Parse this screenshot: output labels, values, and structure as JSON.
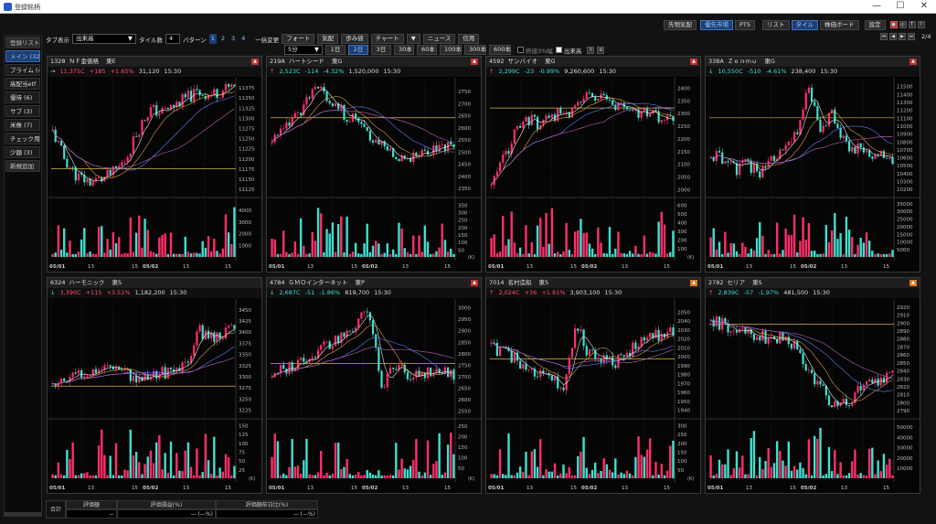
{
  "window": {
    "title": "登録銘柄",
    "controls": [
      "—",
      "☐",
      "✕"
    ]
  },
  "sidebar": {
    "header": "登録リスト",
    "items": [
      {
        "label": "メイン (32)",
        "active": true
      },
      {
        "label": "プライム (4"
      },
      {
        "label": "高配当etf"
      },
      {
        "label": "優待 (6)"
      },
      {
        "label": "サブ (3)"
      },
      {
        "label": "米株 (7)"
      },
      {
        "label": "チェック用 (1"
      },
      {
        "label": "少額 (3)"
      }
    ],
    "add_label": "新規追加"
  },
  "toolbar": {
    "tab_display_label": "タブ表示",
    "tab_display_value": "出来高",
    "tile_count_label": "タイル数",
    "tile_count_value": "4",
    "pattern_label": "パターン",
    "patterns": [
      "1",
      "2",
      "3",
      "4"
    ],
    "bulk_change_label": "一括変更",
    "buttons": [
      "フォート",
      "気配",
      "歩み値",
      "チャート",
      "ニュース",
      "信用"
    ],
    "timeframe": "5分",
    "periods": [
      "1日",
      "2日",
      "3日",
      "30本",
      "60本",
      "100本",
      "300本",
      "600本"
    ],
    "active_period": "2日",
    "checks": [
      {
        "label": "終値3%幅",
        "on": false
      },
      {
        "label": "出来高",
        "on": true
      }
    ]
  },
  "rightbar": {
    "groups1": [
      "先物気配"
    ],
    "groups2": [
      "優先市場",
      "PTS"
    ],
    "groups3": [
      "リスト",
      "タイル",
      "株価ボード"
    ],
    "settings": "設定",
    "page_indicator": "2/4"
  },
  "colors": {
    "up": "#ff4d6d",
    "down": "#3fdcd4",
    "candle_up": "#ff2f6a",
    "candle_down": "#3fe0d0"
  },
  "panels": [
    {
      "code": "1328",
      "name": "ＮＦ金価格",
      "market": "東E",
      "arrow": "→",
      "price": "11,375C",
      "change": "+185",
      "pct": "+1.65%",
      "volume": "31,120",
      "time": "15:30",
      "dir": "up",
      "menu": "red",
      "yticks": [
        "11375",
        "11350",
        "11325",
        "11300",
        "11275",
        "11250",
        "11225",
        "11200",
        "11175",
        "11150",
        "11125"
      ],
      "ymin": 11115,
      "ymax": 11390,
      "vticks": [
        "4000",
        "3000",
        "2000",
        "1000"
      ],
      "vmax": 4800,
      "hline": 11175,
      "xlabels": [
        "05/01",
        "13",
        "15",
        "05/02",
        "13",
        "15"
      ],
      "vol_unit": "",
      "seed": 11,
      "shape": [
        0.55,
        0.3,
        0.15,
        0.1,
        0.12,
        0.18,
        0.3,
        0.55,
        0.75,
        0.72,
        0.78,
        0.85,
        0.9,
        0.88,
        0.92,
        0.95
      ]
    },
    {
      "code": "219A",
      "name": "ハートシード",
      "market": "東G",
      "arrow": "↑",
      "price": "2,523C",
      "change": "-114",
      "pct": "-4.32%",
      "volume": "1,520,000",
      "time": "15:30",
      "dir": "dn",
      "menu": "red",
      "yticks": [
        "2750",
        "2700",
        "2650",
        "2600",
        "2550",
        "2500",
        "2450",
        "2400",
        "2350"
      ],
      "ymin": 2330,
      "ymax": 2790,
      "vticks": [
        "350",
        "300",
        "250",
        "200",
        "150",
        "100",
        "50"
      ],
      "vmax": 380,
      "hline": 2640,
      "xlabels": [
        "05/01",
        "13",
        "15",
        "05/02",
        "13",
        "15"
      ],
      "vol_unit": "(K)",
      "seed": 23,
      "shape": [
        0.5,
        0.55,
        0.7,
        0.85,
        0.95,
        0.8,
        0.7,
        0.65,
        0.5,
        0.45,
        0.35,
        0.32,
        0.35,
        0.38,
        0.42,
        0.4
      ]
    },
    {
      "code": "4592",
      "name": "サンバイオ",
      "market": "東G",
      "arrow": "↑",
      "price": "2,299C",
      "change": "-23",
      "pct": "-0.99%",
      "volume": "9,260,600",
      "time": "15:30",
      "dir": "dn",
      "menu": "red",
      "yticks": [
        "2400",
        "2350",
        "2300",
        "2250",
        "2200",
        "2150",
        "2100",
        "2050",
        "2000"
      ],
      "ymin": 1985,
      "ymax": 2425,
      "vticks": [
        "600",
        "500",
        "400",
        "300",
        "200",
        "100"
      ],
      "vmax": 650,
      "hline": 2320,
      "xlabels": [
        "05/01",
        "13",
        "15",
        "05/02",
        "13",
        "15"
      ],
      "vol_unit": "(K)",
      "seed": 37,
      "shape": [
        0.05,
        0.3,
        0.55,
        0.65,
        0.62,
        0.7,
        0.72,
        0.75,
        0.9,
        0.85,
        0.78,
        0.75,
        0.72,
        0.7,
        0.68,
        0.65
      ]
    },
    {
      "code": "338A",
      "name": "Ｚｅｎｍｕ",
      "market": "東G",
      "arrow": "↓",
      "price": "10,550C",
      "change": "-510",
      "pct": "-4.61%",
      "volume": "238,400",
      "time": "15:30",
      "dir": "dn",
      "menu": "red",
      "yticks": [
        "11500",
        "11400",
        "11300",
        "11200",
        "11100",
        "11000",
        "10900",
        "10800",
        "10700",
        "10600",
        "10500",
        "10400",
        "10300",
        "10200"
      ],
      "ymin": 10150,
      "ymax": 11560,
      "vticks": [
        "35000",
        "30000",
        "25000",
        "20000",
        "15000",
        "10000",
        "5000"
      ],
      "vmax": 37000,
      "hline": 11100,
      "xlabels": [
        "05/01",
        "13",
        "15",
        "05/02",
        "13",
        "15"
      ],
      "vol_unit": "",
      "seed": 51,
      "shape": [
        0.35,
        0.3,
        0.2,
        0.25,
        0.18,
        0.3,
        0.35,
        0.5,
        0.95,
        0.6,
        0.7,
        0.45,
        0.4,
        0.38,
        0.32,
        0.28
      ]
    },
    {
      "code": "6324",
      "name": "ハーモニック",
      "market": "東S",
      "arrow": "↓",
      "price": "3,390C",
      "change": "+115",
      "pct": "+3.51%",
      "volume": "1,182,200",
      "time": "15:30",
      "dir": "up",
      "menu": "none",
      "yticks": [
        "3450",
        "3425",
        "3400",
        "3375",
        "3350",
        "3325",
        "3300",
        "3275",
        "3250",
        "3225"
      ],
      "ymin": 3215,
      "ymax": 3465,
      "vticks": [
        "150",
        "125",
        "100",
        "75",
        "50",
        "25"
      ],
      "vmax": 160,
      "hline": 3278,
      "xlabels": [
        "05/01",
        "13",
        "15",
        "05/02",
        "13",
        "15"
      ],
      "vol_unit": "(K)",
      "seed": 63,
      "shape": [
        0.25,
        0.3,
        0.35,
        0.4,
        0.42,
        0.45,
        0.4,
        0.3,
        0.35,
        0.38,
        0.35,
        0.45,
        0.75,
        0.7,
        0.72,
        0.78
      ]
    },
    {
      "code": "4784",
      "name": "ＧＭＯインターネット",
      "market": "東P",
      "arrow": "↓",
      "price": "2,687C",
      "change": "-51",
      "pct": "-1.86%",
      "volume": "819,700",
      "time": "15:30",
      "dir": "dn",
      "menu": "red",
      "yticks": [
        "3000",
        "2950",
        "2900",
        "2850",
        "2800",
        "2750",
        "2700",
        "2650",
        "2600",
        "2550"
      ],
      "ymin": 2535,
      "ymax": 3020,
      "vticks": [
        "250",
        "200",
        "150",
        "100",
        "50"
      ],
      "vmax": 270,
      "hline": 2755,
      "xlabels": [
        "05/01",
        "13",
        "15",
        "05/02",
        "13",
        "15"
      ],
      "vol_unit": "(K)",
      "seed": 79,
      "shape": [
        0.35,
        0.4,
        0.45,
        0.5,
        0.6,
        0.65,
        0.7,
        0.8,
        0.95,
        0.25,
        0.4,
        0.38,
        0.35,
        0.4,
        0.38,
        0.36
      ]
    },
    {
      "code": "7014",
      "name": "名村造船",
      "market": "東S",
      "arrow": "↑",
      "price": "2,024C",
      "change": "+36",
      "pct": "+1.81%",
      "volume": "3,903,100",
      "time": "15:30",
      "dir": "up",
      "menu": "orange",
      "yticks": [
        "2050",
        "2040",
        "2030",
        "2020",
        "2010",
        "2000",
        "1990",
        "1980",
        "1970",
        "1960",
        "1950",
        "1940"
      ],
      "ymin": 1935,
      "ymax": 2060,
      "vticks": [
        "300",
        "250",
        "200",
        "150",
        "100",
        "50"
      ],
      "vmax": 320,
      "hline": 1997,
      "xlabels": [
        "05/01",
        "13",
        "15",
        "05/02",
        "13",
        "15"
      ],
      "vol_unit": "(K)",
      "seed": 91,
      "shape": [
        0.6,
        0.55,
        0.5,
        0.4,
        0.35,
        0.3,
        0.25,
        0.8,
        0.55,
        0.5,
        0.45,
        0.55,
        0.6,
        0.7,
        0.72,
        0.75
      ]
    },
    {
      "code": "2782",
      "name": "セリア",
      "market": "東S",
      "arrow": "↑",
      "price": "2,839C",
      "change": "-57",
      "pct": "-1.97%",
      "volume": "481,500",
      "time": "15:30",
      "dir": "dn",
      "menu": "orange",
      "yticks": [
        "2920",
        "2910",
        "2900",
        "2890",
        "2880",
        "2870",
        "2860",
        "2850",
        "2840",
        "2830",
        "2820",
        "2810",
        "2800",
        "2790"
      ],
      "ymin": 2785,
      "ymax": 2925,
      "vticks": [
        "50000",
        "40000",
        "30000",
        "20000",
        "10000"
      ],
      "vmax": 55000,
      "hline": 2898,
      "xlabels": [
        "05/01",
        "13",
        "15",
        "05/02",
        "13",
        "15"
      ],
      "vol_unit": "",
      "seed": 107,
      "shape": [
        0.85,
        0.8,
        0.75,
        0.72,
        0.7,
        0.68,
        0.7,
        0.62,
        0.4,
        0.25,
        0.1,
        0.08,
        0.2,
        0.25,
        0.3,
        0.35
      ]
    }
  ],
  "summary": {
    "label": "合計",
    "headers": [
      "評価額",
      "評価損益(%)",
      "評価額前日比(%)"
    ],
    "values": [
      "—",
      "—  (—%)",
      "—  (—%)"
    ]
  }
}
